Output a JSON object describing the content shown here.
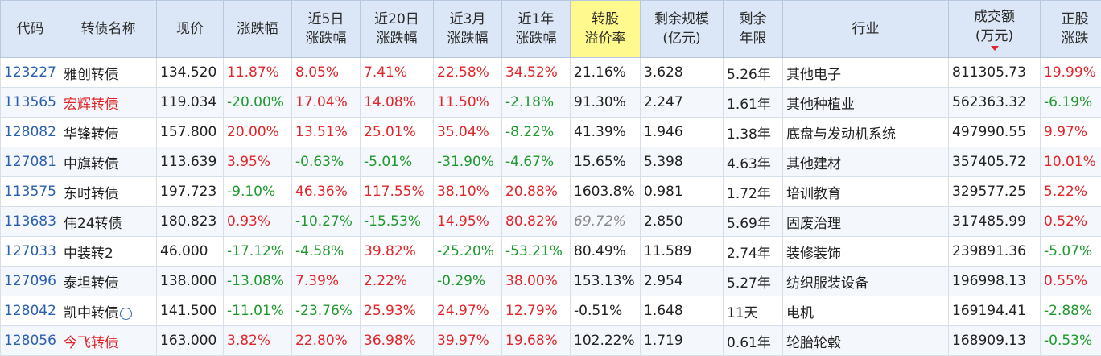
{
  "headers": {
    "code": [
      "代码"
    ],
    "name": [
      "转债名称"
    ],
    "price": [
      "现价"
    ],
    "change": [
      "涨跌幅"
    ],
    "chg5d": [
      "近5日",
      "涨跌幅"
    ],
    "chg20d": [
      "近20日",
      "涨跌幅"
    ],
    "chg3m": [
      "近3月",
      "涨跌幅"
    ],
    "chg1y": [
      "近1年",
      "涨跌幅"
    ],
    "premium": [
      "转股",
      "溢价率"
    ],
    "scale": [
      "剩余规模",
      "(亿元)"
    ],
    "term": [
      "剩余",
      "年限"
    ],
    "industry": [
      "行业"
    ],
    "volume": [
      "成交额",
      "(万元)"
    ],
    "stock_chg": [
      "正股",
      "涨跌"
    ]
  },
  "sorted_column": "volume",
  "highlighted_column": "premium",
  "colors": {
    "header_bg": "#dbe7f6",
    "highlight_header_bg": "#fff98e",
    "up": "#e1262a",
    "down": "#1f9a2e",
    "code": "#2b5fb0"
  },
  "rows": [
    {
      "code": "123227",
      "name": "雅创转债",
      "price": "134.520",
      "change": "11.87%",
      "chg5d": "8.05%",
      "chg20d": "7.41%",
      "chg3m": "22.58%",
      "chg1y": "34.52%",
      "premium": "21.16%",
      "scale": "3.628",
      "term": "5.26年",
      "industry": "其他电子",
      "volume": "811305.73",
      "stock_chg": "19.99%"
    },
    {
      "code": "113565",
      "name": "宏辉转债",
      "name_red": true,
      "price": "119.034",
      "change": "-20.00%",
      "chg5d": "17.04%",
      "chg20d": "14.08%",
      "chg3m": "11.50%",
      "chg1y": "-2.18%",
      "premium": "91.30%",
      "scale": "2.247",
      "term": "1.61年",
      "industry": "其他种植业",
      "volume": "562363.32",
      "stock_chg": "-6.19%"
    },
    {
      "code": "128082",
      "name": "华锋转债",
      "price": "157.800",
      "change": "20.00%",
      "chg5d": "13.51%",
      "chg20d": "25.01%",
      "chg3m": "35.04%",
      "chg1y": "-8.22%",
      "premium": "41.39%",
      "scale": "1.946",
      "term": "1.38年",
      "industry": "底盘与发动机系统",
      "volume": "497990.55",
      "stock_chg": "9.97%"
    },
    {
      "code": "127081",
      "name": "中旗转债",
      "price": "113.639",
      "change": "3.95%",
      "chg5d": "-0.63%",
      "chg20d": "-5.01%",
      "chg3m": "-31.90%",
      "chg1y": "-4.67%",
      "premium": "15.65%",
      "scale": "5.398",
      "term": "4.63年",
      "industry": "其他建材",
      "volume": "357405.72",
      "stock_chg": "10.01%"
    },
    {
      "code": "113575",
      "name": "东时转债",
      "price": "197.723",
      "change": "-9.10%",
      "chg5d": "46.36%",
      "chg20d": "117.55%",
      "chg3m": "38.10%",
      "chg1y": "20.88%",
      "premium": "1603.8%",
      "scale": "0.981",
      "term": "1.72年",
      "industry": "培训教育",
      "volume": "329577.25",
      "stock_chg": "5.22%"
    },
    {
      "code": "113683",
      "name": "伟24转债",
      "price": "180.823",
      "change": "0.93%",
      "chg5d": "-10.27%",
      "chg20d": "-15.53%",
      "chg3m": "14.95%",
      "chg1y": "80.82%",
      "premium": "69.72%",
      "premium_italic": true,
      "scale": "2.850",
      "term": "5.69年",
      "industry": "固废治理",
      "volume": "317485.99",
      "stock_chg": "0.52%"
    },
    {
      "code": "127033",
      "name": "中装转2",
      "price": "46.000",
      "change": "-17.12%",
      "chg5d": "-4.58%",
      "chg20d": "39.82%",
      "chg3m": "-25.20%",
      "chg1y": "-53.21%",
      "premium": "80.49%",
      "scale": "11.589",
      "term": "2.74年",
      "industry": "装修装饰",
      "volume": "239891.36",
      "stock_chg": "-5.07%"
    },
    {
      "code": "127096",
      "name": "泰坦转债",
      "price": "138.000",
      "change": "-13.08%",
      "chg5d": "7.39%",
      "chg20d": "2.22%",
      "chg3m": "-0.29%",
      "chg1y": "38.00%",
      "premium": "153.13%",
      "scale": "2.954",
      "term": "5.27年",
      "industry": "纺织服装设备",
      "volume": "196998.13",
      "stock_chg": "0.55%"
    },
    {
      "code": "128042",
      "name": "凯中转债",
      "info_icon": true,
      "price": "141.500",
      "change": "-11.01%",
      "chg5d": "-23.76%",
      "chg20d": "25.93%",
      "chg3m": "24.97%",
      "chg1y": "12.79%",
      "premium": "-0.51%",
      "scale": "1.648",
      "term": "11天",
      "industry": "电机",
      "volume": "169194.41",
      "stock_chg": "-2.88%"
    },
    {
      "code": "128056",
      "name": "今飞转债",
      "name_red": true,
      "price": "163.000",
      "change": "3.82%",
      "chg5d": "22.80%",
      "chg20d": "36.98%",
      "chg3m": "39.97%",
      "chg1y": "19.68%",
      "premium": "102.22%",
      "scale": "1.719",
      "term": "0.61年",
      "industry": "轮胎轮毂",
      "volume": "168909.13",
      "stock_chg": "-0.53%"
    }
  ]
}
